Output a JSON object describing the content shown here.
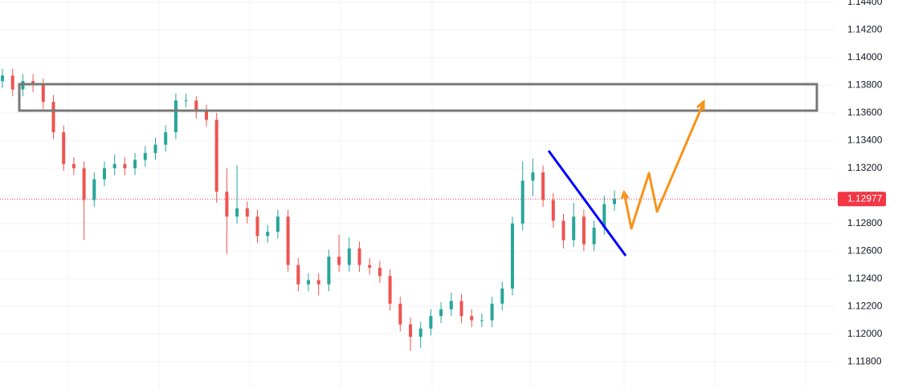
{
  "chart_data": {
    "type": "ohlc",
    "open": [
      1.1383,
      1.1387,
      1.1377,
      1.1383,
      1.138,
      1.1368,
      1.1346,
      1.1323,
      1.132,
      1.1297,
      1.1312,
      1.132,
      1.1323,
      1.132,
      1.1326,
      1.1331,
      1.1337,
      1.1346,
      1.1369,
      1.1369,
      1.1361,
      1.1355,
      1.1303,
      1.1285,
      1.1291,
      1.1285,
      1.1271,
      1.1274,
      1.1285,
      1.125,
      1.1236,
      1.1239,
      1.1236,
      1.1256,
      1.125,
      1.1262,
      1.125,
      1.1248,
      1.1242,
      1.1222,
      1.1207,
      1.1198,
      1.1204,
      1.1213,
      1.1218,
      1.1224,
      1.1213,
      1.121,
      1.121,
      1.1222,
      1.1233,
      1.128,
      1.1311,
      1.1317,
      1.1297,
      1.1282,
      1.1268,
      1.1285,
      1.1265,
      1.1277,
      1.1294
    ],
    "high": [
      1.1392,
      1.1392,
      1.1388,
      1.1388,
      1.1385,
      1.1373,
      1.1351,
      1.1328,
      1.1325,
      1.1317,
      1.1325,
      1.133,
      1.1328,
      1.1331,
      1.1336,
      1.1342,
      1.1351,
      1.1374,
      1.1374,
      1.1372,
      1.1366,
      1.136,
      1.132,
      1.1322,
      1.1296,
      1.129,
      1.1279,
      1.129,
      1.129,
      1.1255,
      1.1244,
      1.1244,
      1.1261,
      1.1272,
      1.127,
      1.1267,
      1.1255,
      1.1253,
      1.1247,
      1.1227,
      1.1212,
      1.1209,
      1.1218,
      1.1223,
      1.123,
      1.1229,
      1.1218,
      1.1215,
      1.1227,
      1.1238,
      1.1285,
      1.1325,
      1.1327,
      1.1322,
      1.1302,
      1.1287,
      1.1295,
      1.129,
      1.1282,
      1.13,
      1.1304
    ],
    "low": [
      1.1378,
      1.1372,
      1.1372,
      1.1375,
      1.1363,
      1.1341,
      1.1318,
      1.1315,
      1.1268,
      1.1292,
      1.1307,
      1.1315,
      1.1315,
      1.1315,
      1.1321,
      1.1326,
      1.1332,
      1.1341,
      1.1364,
      1.1356,
      1.135,
      1.1295,
      1.1258,
      1.128,
      1.128,
      1.1266,
      1.1266,
      1.1269,
      1.1245,
      1.1231,
      1.1231,
      1.1228,
      1.1231,
      1.1245,
      1.1245,
      1.1245,
      1.1243,
      1.1237,
      1.1217,
      1.1202,
      1.1188,
      1.119,
      1.1199,
      1.1208,
      1.1213,
      1.1208,
      1.1205,
      1.1205,
      1.1205,
      1.1217,
      1.1228,
      1.1275,
      1.13,
      1.1292,
      1.1277,
      1.1262,
      1.1263,
      1.126,
      1.126,
      1.1272,
      1.1289
    ],
    "close": [
      1.1387,
      1.1377,
      1.1383,
      1.138,
      1.1368,
      1.1346,
      1.1323,
      1.132,
      1.1297,
      1.1312,
      1.132,
      1.1323,
      1.132,
      1.1326,
      1.1331,
      1.1337,
      1.1346,
      1.1369,
      1.1369,
      1.1361,
      1.1355,
      1.1303,
      1.1285,
      1.1291,
      1.1285,
      1.1271,
      1.1274,
      1.1285,
      1.125,
      1.1236,
      1.1239,
      1.1236,
      1.1256,
      1.125,
      1.1262,
      1.125,
      1.1248,
      1.1242,
      1.1222,
      1.1207,
      1.1198,
      1.1204,
      1.1213,
      1.1218,
      1.1224,
      1.1213,
      1.121,
      1.121,
      1.1222,
      1.1233,
      1.128,
      1.1311,
      1.1317,
      1.1297,
      1.1282,
      1.1268,
      1.1285,
      1.1265,
      1.1277,
      1.1294,
      1.1298
    ],
    "up_color": "#26a69a",
    "down_color": "#ef5350",
    "last_price": 1.12977,
    "last_price_color": "#f23645",
    "ylim": [
      1.1161,
      1.14417
    ],
    "yticks": [
      {
        "value": 1.118,
        "label": "1.11800"
      },
      {
        "value": 1.12,
        "label": "1.12000"
      },
      {
        "value": 1.122,
        "label": "1.12200"
      },
      {
        "value": 1.124,
        "label": "1.12400"
      },
      {
        "value": 1.126,
        "label": "1.12600"
      },
      {
        "value": 1.128,
        "label": "1.12800"
      },
      {
        "value": 1.13,
        "label": "1.13000"
      },
      {
        "value": 1.132,
        "label": "1.13200"
      },
      {
        "value": 1.134,
        "label": "1.13400"
      },
      {
        "value": 1.136,
        "label": "1.13600"
      },
      {
        "value": 1.138,
        "label": "1.13800"
      },
      {
        "value": 1.14,
        "label": "1.14000"
      },
      {
        "value": 1.142,
        "label": "1.14200"
      },
      {
        "value": 1.144,
        "label": "1.14400"
      }
    ],
    "grid": true
  }
}
